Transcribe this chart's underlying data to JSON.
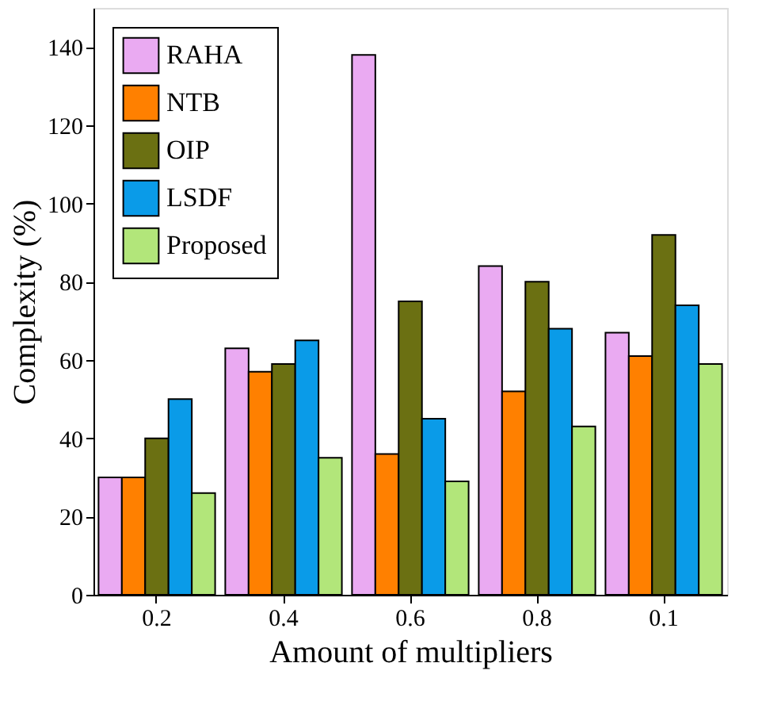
{
  "chart_data": {
    "type": "bar",
    "xlabel": "Amount of multipliers",
    "ylabel": "Complexity (%)",
    "categories": [
      "0.2",
      "0.4",
      "0.6",
      "0.8",
      "0.1"
    ],
    "series": [
      {
        "name": "RAHA",
        "color": "#eaaaf2",
        "values": [
          30,
          63,
          138,
          84,
          67
        ]
      },
      {
        "name": "NTB",
        "color": "#ff8000",
        "values": [
          30,
          57,
          36,
          52,
          61
        ]
      },
      {
        "name": "OIP",
        "color": "#6b7012",
        "values": [
          40,
          59,
          75,
          80,
          92
        ]
      },
      {
        "name": "LSDF",
        "color": "#0a9be8",
        "values": [
          50,
          65,
          45,
          68,
          74
        ]
      },
      {
        "name": "Proposed",
        "color": "#b2e67a",
        "values": [
          26,
          35,
          29,
          43,
          59
        ]
      }
    ],
    "ylim": [
      0,
      150
    ],
    "yticks": [
      0,
      20,
      40,
      60,
      80,
      100,
      120,
      140
    ],
    "grid": false,
    "legend": "top left"
  }
}
